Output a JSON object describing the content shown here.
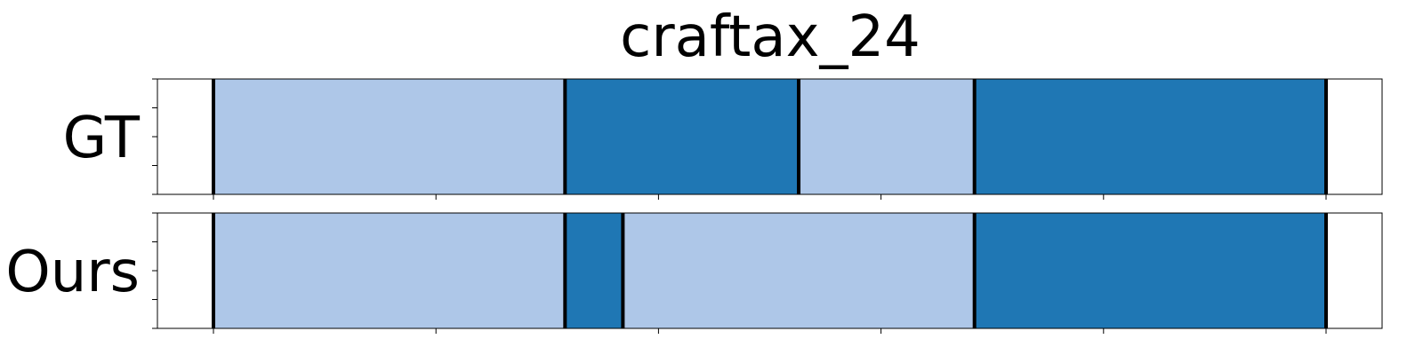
{
  "chart_data": {
    "type": "segmentation_timeline",
    "title": "craftax_24",
    "xlim": [
      0,
      25
    ],
    "x_ticks": [
      0,
      5,
      10,
      15,
      20,
      25
    ],
    "tick_labels_shown": false,
    "grid": false,
    "rows": [
      {
        "label": "GT",
        "segments": [
          {
            "start": 0,
            "end": 7.9,
            "color": "#aec7e8"
          },
          {
            "start": 7.9,
            "end": 13.15,
            "color": "#1f77b4"
          },
          {
            "start": 13.15,
            "end": 17.1,
            "color": "#aec7e8"
          },
          {
            "start": 17.1,
            "end": 25,
            "color": "#1f77b4"
          }
        ],
        "boundaries": [
          0,
          7.9,
          13.15,
          17.1,
          25
        ]
      },
      {
        "label": "Ours",
        "segments": [
          {
            "start": 0,
            "end": 7.9,
            "color": "#aec7e8"
          },
          {
            "start": 7.9,
            "end": 9.2,
            "color": "#1f77b4"
          },
          {
            "start": 9.2,
            "end": 17.1,
            "color": "#aec7e8"
          },
          {
            "start": 17.1,
            "end": 25,
            "color": "#1f77b4"
          }
        ],
        "boundaries": [
          0,
          7.9,
          9.2,
          17.1,
          25
        ]
      }
    ]
  }
}
